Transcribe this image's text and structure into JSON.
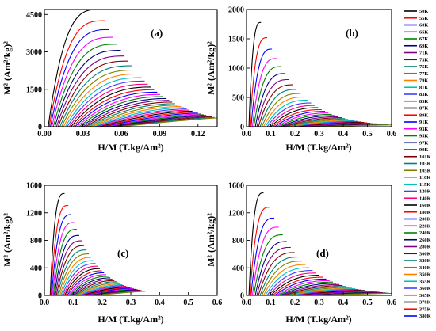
{
  "figure": {
    "background": "#ffffff",
    "curve_colors": [
      "#000000",
      "#ff0000",
      "#0000ff",
      "#ff00ff",
      "#008000",
      "#000080",
      "#800080",
      "#800000",
      "#008080",
      "#808000",
      "#ff8000",
      "#00c0c0",
      "#4040ff",
      "#ff0080"
    ]
  },
  "chart_data": [
    {
      "type": "line",
      "panel_label": "(a)",
      "xlabel": "H/M (T.kg/Am²)",
      "ylabel": "M² (Am²/kg)²",
      "xlim": [
        0.0,
        0.135
      ],
      "ylim": [
        0,
        4700
      ],
      "xticks": [
        "0.00",
        "0.03",
        "0.06",
        "0.09",
        "0.12"
      ],
      "yticks": [
        "0",
        "1500",
        "3000",
        "4500"
      ],
      "grid": false,
      "legend_position": "right",
      "curve_model": {
        "curves": 38,
        "peak_x": [
          0.043,
          0.135
        ],
        "peak_y": [
          4700,
          350
        ],
        "x_start": [
          0.003,
          0.06
        ]
      }
    },
    {
      "type": "line",
      "panel_label": "(b)",
      "xlabel": "H/M (T.kg/Am²)",
      "ylabel": "M² (Am²/kg)²",
      "xlim": [
        0.0,
        0.6
      ],
      "ylim": [
        0,
        2000
      ],
      "xticks": [
        "0.0",
        "0.1",
        "0.2",
        "0.3",
        "0.4",
        "0.5",
        "0.6"
      ],
      "yticks": [
        "0",
        "500",
        "1000",
        "1500",
        "2000"
      ],
      "grid": false,
      "legend_position": "right",
      "curve_model": {
        "curves": 38,
        "peak_x": [
          0.06,
          0.6
        ],
        "peak_y": [
          1780,
          30
        ],
        "x_start": [
          0.01,
          0.3
        ]
      }
    },
    {
      "type": "line",
      "panel_label": "(c)",
      "xlabel": "H/M (T.kg/Am²)",
      "ylabel": "M² (Am²/kg)²",
      "xlim": [
        0.0,
        0.6
      ],
      "ylim": [
        0,
        1600
      ],
      "xticks": [
        "0.0",
        "0.1",
        "0.2",
        "0.3",
        "0.4",
        "0.5",
        "0.6"
      ],
      "yticks": [
        "0",
        "400",
        "800",
        "1200",
        "1600"
      ],
      "grid": false,
      "legend_position": "right",
      "curve_model": {
        "curves": 38,
        "peak_x": [
          0.07,
          0.35
        ],
        "peak_y": [
          1480,
          60
        ],
        "x_start": [
          0.02,
          0.18
        ]
      }
    },
    {
      "type": "line",
      "panel_label": "(d)",
      "xlabel": "H/M (T.kg/Am²)",
      "ylabel": "M² (Am²/kg)²",
      "xlim": [
        0.0,
        0.6
      ],
      "ylim": [
        0,
        1600
      ],
      "xticks": [
        "0.0",
        "0.1",
        "0.2",
        "0.3",
        "0.4",
        "0.5",
        "0.6"
      ],
      "yticks": [
        "0",
        "400",
        "800",
        "1200",
        "1600"
      ],
      "grid": false,
      "legend_position": "right",
      "curve_model": {
        "curves": 38,
        "peak_x": [
          0.07,
          0.6
        ],
        "peak_y": [
          1490,
          30
        ],
        "x_start": [
          0.01,
          0.3
        ]
      }
    }
  ],
  "legend": {
    "entries": [
      "50K",
      "55K",
      "60K",
      "65K",
      "67K",
      "69K",
      "71K",
      "73K",
      "75K",
      "77K",
      "79K",
      "81K",
      "83K",
      "85K",
      "87K",
      "89K",
      "91K",
      "93K",
      "95K",
      "97K",
      "99K",
      "101K",
      "103K",
      "105K",
      "110K",
      "115K",
      "120K",
      "140K",
      "160K",
      "180K",
      "200K",
      "220K",
      "240K",
      "260K",
      "280K",
      "300K",
      "320K",
      "340K",
      "350K",
      "355K",
      "360K",
      "365K",
      "370K",
      "375K",
      "380K"
    ]
  }
}
